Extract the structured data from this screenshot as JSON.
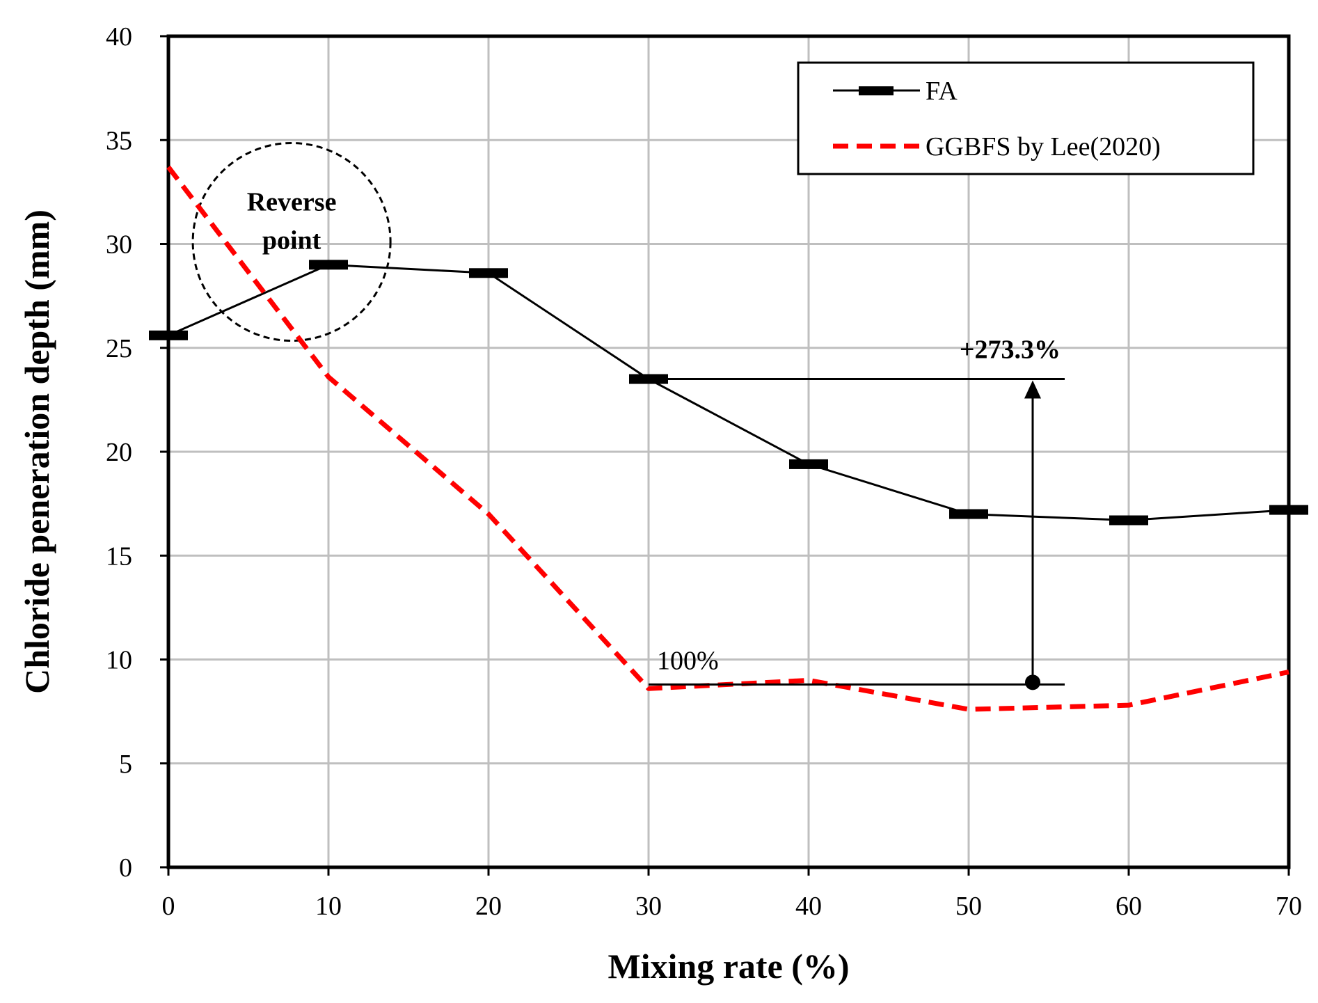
{
  "chart_data": {
    "type": "line",
    "title": "",
    "xlabel": "Mixing rate (%)",
    "ylabel": "Chloride peneration depth (mm)",
    "xlim": [
      0,
      70
    ],
    "ylim": [
      0,
      40
    ],
    "xticks": [
      0,
      10,
      20,
      30,
      40,
      50,
      60,
      70
    ],
    "yticks": [
      0,
      5,
      10,
      15,
      20,
      25,
      30,
      35,
      40
    ],
    "grid": true,
    "legend_position": "top-right",
    "series": [
      {
        "name": "FA",
        "style": "solid-with-dash-markers",
        "color": "#000000",
        "x": [
          0,
          10,
          20,
          30,
          40,
          50,
          60,
          70
        ],
        "y": [
          25.6,
          29.0,
          28.6,
          23.5,
          19.4,
          17.0,
          16.7,
          17.2
        ]
      },
      {
        "name": "GGBFS by Lee(2020)",
        "style": "dashed",
        "color": "#ff0000",
        "x": [
          0,
          10,
          20,
          30,
          40,
          50,
          60,
          70
        ],
        "y": [
          33.7,
          23.6,
          17.0,
          8.6,
          9.0,
          7.6,
          7.8,
          9.4
        ]
      }
    ],
    "annotations": {
      "reverse_point": {
        "text_line1": "Reverse",
        "text_line2": "point",
        "x": 7.7,
        "y": 30.1
      },
      "increase": {
        "text": "+273.3%",
        "x": 54,
        "y_from": 8.8,
        "y_to": 23.5
      },
      "baseline": {
        "text": "100%",
        "x": 30,
        "y": 8.8
      }
    }
  }
}
